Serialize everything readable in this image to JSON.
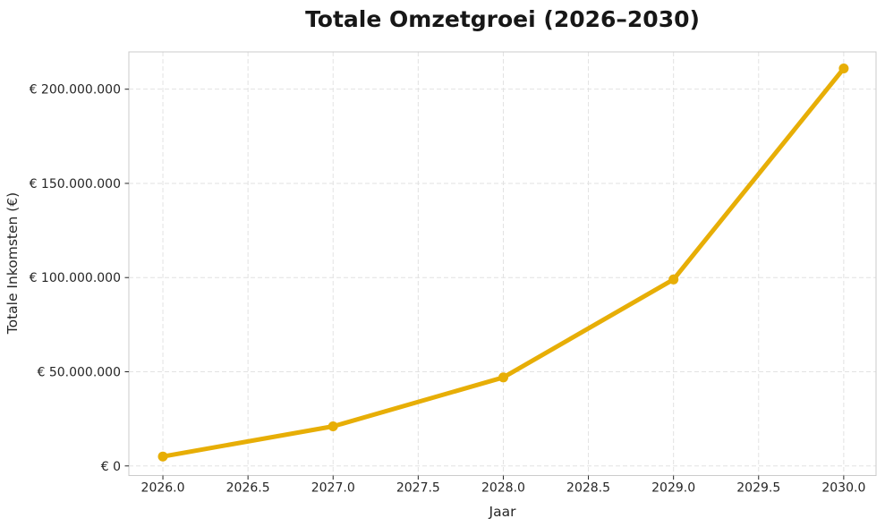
{
  "chart_data": {
    "type": "line",
    "title": "Totale Omzetgroei (2026–2030)",
    "xlabel": "Jaar",
    "ylabel": "Totale Inkomsten (€)",
    "x": [
      2026,
      2027,
      2028,
      2029,
      2030
    ],
    "values": [
      5000000,
      21000000,
      47000000,
      99000000,
      211000000
    ],
    "xlim": [
      2025.8,
      2030.19
    ],
    "ylim": [
      -5100000,
      219800000
    ],
    "xticks": [
      2026.0,
      2026.5,
      2027.0,
      2027.5,
      2028.0,
      2028.5,
      2029.0,
      2029.5,
      2030.0
    ],
    "xtick_labels": [
      "2026.0",
      "2026.5",
      "2027.0",
      "2027.5",
      "2028.0",
      "2028.5",
      "2029.0",
      "2029.5",
      "2030.0"
    ],
    "yticks": [
      0,
      50000000,
      100000000,
      150000000,
      200000000
    ],
    "ytick_labels": [
      "€ 0",
      "€ 50.000.000",
      "€ 100.000.000",
      "€ 150.000.000",
      "€ 200.000.000"
    ],
    "grid": true,
    "grid_linestyle": "dashed",
    "legend_position": "none",
    "marker": "circle",
    "colors": {
      "line": "#E7AE06",
      "marker": "#E7AE06",
      "grid": "#E2E2E2",
      "spine": "#CBCBCB",
      "tick": "#262626",
      "text": "#262626",
      "title": "#171717",
      "background": "#FFFFFF"
    }
  }
}
